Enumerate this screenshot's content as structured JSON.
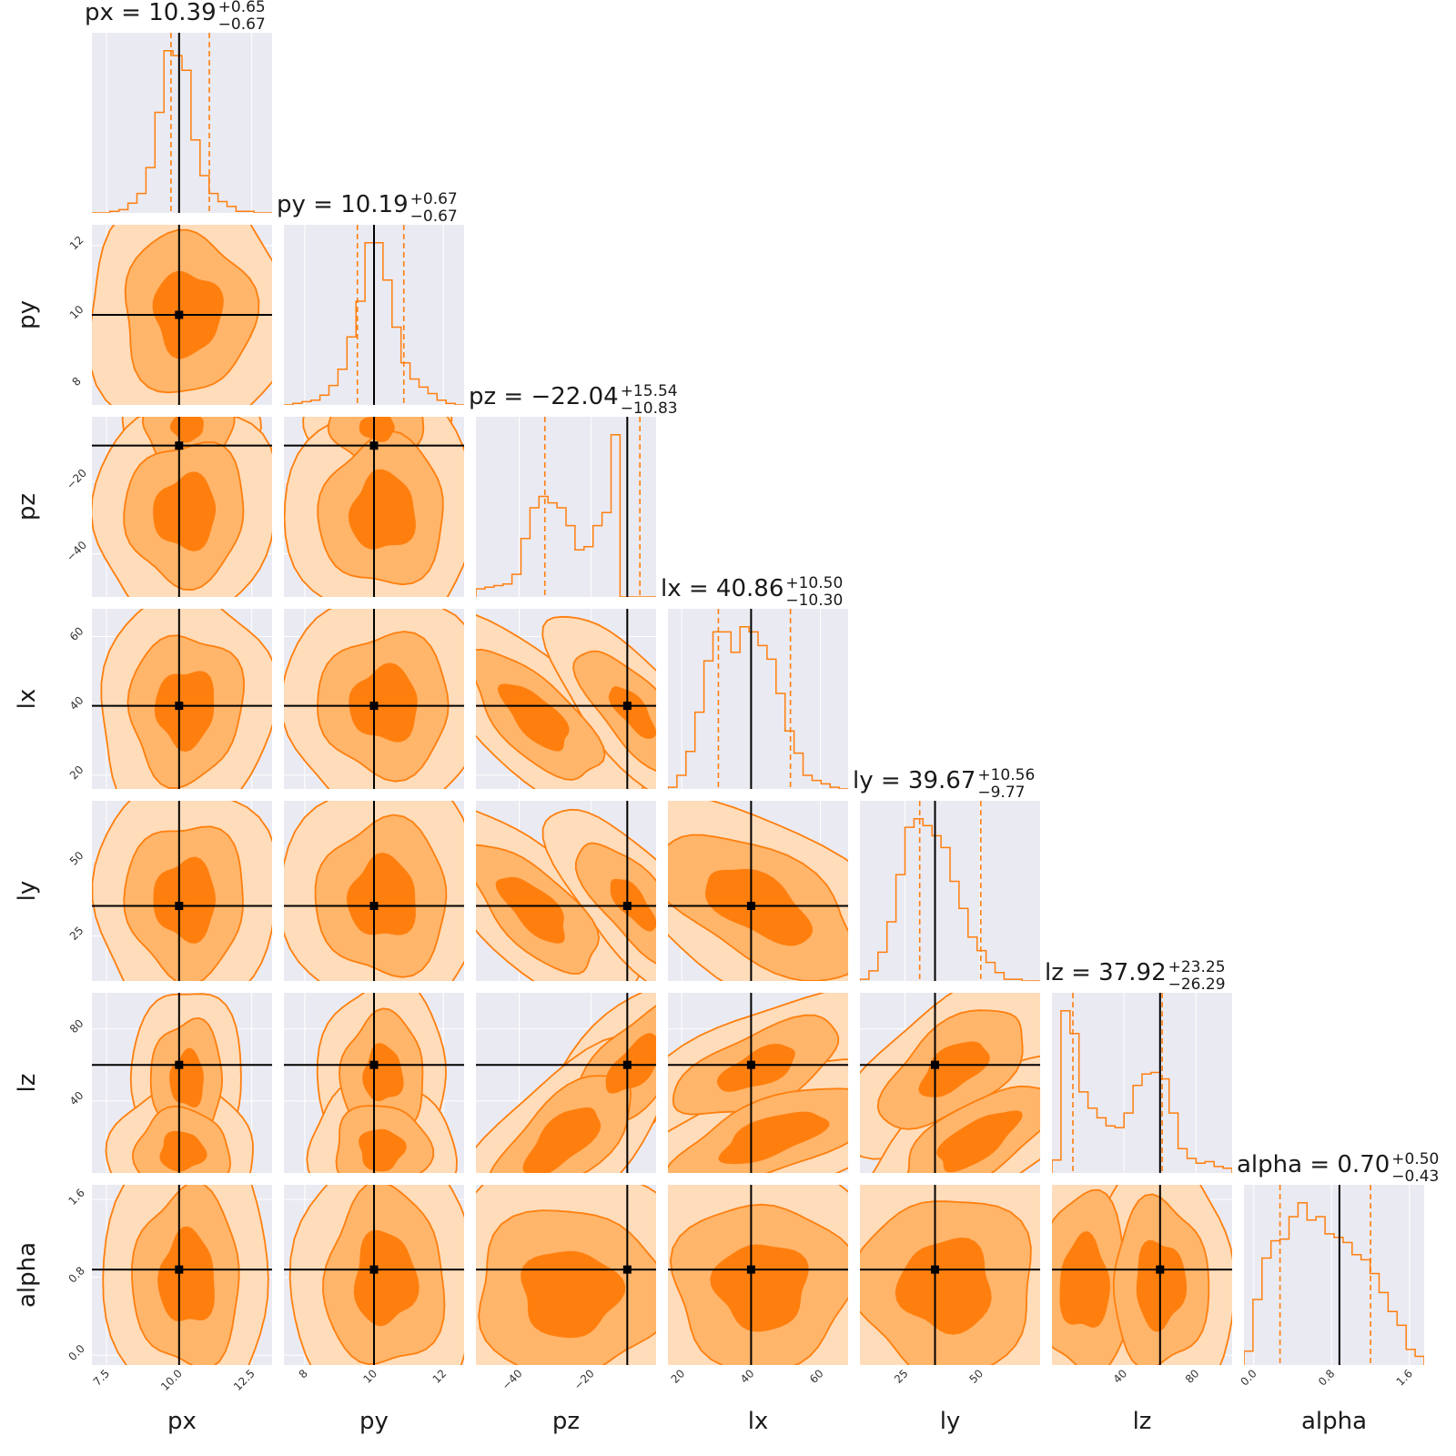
{
  "chart_data": {
    "type": "corner",
    "params": [
      "px",
      "py",
      "pz",
      "lx",
      "ly",
      "lz",
      "alpha"
    ],
    "truths": [
      10.0,
      10.0,
      -10.0,
      40.0,
      35.0,
      60.0,
      0.88
    ],
    "ranges": [
      [
        7.0,
        13.2
      ],
      [
        7.4,
        12.6
      ],
      [
        -52,
        -2
      ],
      [
        16,
        68
      ],
      [
        10,
        70
      ],
      [
        0,
        100
      ],
      [
        -0.1,
        1.75
      ]
    ],
    "ticks": [
      [
        7.5,
        10.0,
        12.5
      ],
      [
        8,
        10,
        12
      ],
      [
        -40,
        -20
      ],
      [
        20,
        40,
        60
      ],
      [
        25,
        50
      ],
      [
        40,
        80
      ],
      [
        0.0,
        0.8,
        1.6
      ]
    ],
    "tick_labels": [
      [
        "7.5",
        "10.0",
        "12.5"
      ],
      [
        "8",
        "10",
        "12"
      ],
      [
        "−40",
        "−20"
      ],
      [
        "20",
        "40",
        "60"
      ],
      [
        "25",
        "50"
      ],
      [
        "40",
        "80"
      ],
      [
        "0.0",
        "0.8",
        "1.6"
      ]
    ],
    "y_ticks": [
      null,
      [
        8,
        10,
        12
      ],
      [
        -40,
        -20
      ],
      [
        20,
        40,
        60
      ],
      [
        25,
        50
      ],
      [
        40,
        80
      ],
      [
        0.0,
        0.8,
        1.6
      ]
    ],
    "y_tick_labels": [
      null,
      [
        "8",
        "10",
        "12"
      ],
      [
        "−40",
        "−20"
      ],
      [
        "20",
        "40",
        "60"
      ],
      [
        "25",
        "50"
      ],
      [
        "40",
        "80"
      ],
      [
        "0.0",
        "0.8",
        "1.6"
      ]
    ],
    "titles": [
      {
        "main": "px = 10.39",
        "plus": "+0.65",
        "minus": "−0.67"
      },
      {
        "main": "py = 10.19",
        "plus": "+0.67",
        "minus": "−0.67"
      },
      {
        "main": "pz = −22.04",
        "plus": "+15.54",
        "minus": "−10.83"
      },
      {
        "main": "lx = 40.86",
        "plus": "+10.50",
        "minus": "−10.30"
      },
      {
        "main": "ly = 39.67",
        "plus": "+10.56",
        "minus": "−9.77"
      },
      {
        "main": "lz = 37.92",
        "plus": "+23.25",
        "minus": "−26.29"
      },
      {
        "main": "alpha = 0.70",
        "plus": "+0.50",
        "minus": "−0.43"
      }
    ],
    "quantiles": [
      [
        9.72,
        11.04
      ],
      [
        9.52,
        10.86
      ],
      [
        -32.87,
        -6.5
      ],
      [
        30.56,
        51.36
      ],
      [
        29.9,
        50.23
      ],
      [
        11.63,
        61.17
      ],
      [
        0.27,
        1.2
      ]
    ],
    "histograms": [
      {
        "edges_start": 7.0,
        "edges_end": 13.2,
        "counts": [
          0,
          0,
          1,
          2,
          6,
          12,
          28,
          62,
          100,
          97,
          88,
          45,
          23,
          12,
          7,
          4,
          1,
          1,
          0,
          0
        ]
      },
      {
        "edges_start": 7.4,
        "edges_end": 12.6,
        "counts": [
          0,
          1,
          2,
          3,
          6,
          12,
          22,
          42,
          64,
          100,
          100,
          77,
          48,
          26,
          16,
          11,
          7,
          3,
          1,
          0
        ]
      },
      {
        "edges_start": -52,
        "edges_end": -2,
        "counts": [
          5,
          6,
          7,
          8,
          14,
          36,
          55,
          62,
          58,
          55,
          44,
          29,
          31,
          44,
          52,
          100,
          0,
          0,
          0,
          0
        ]
      },
      {
        "edges_start": 16,
        "edges_end": 68,
        "counts": [
          1,
          8,
          22,
          45,
          75,
          92,
          92,
          80,
          95,
          92,
          84,
          76,
          56,
          34,
          21,
          8,
          5,
          3,
          1,
          0
        ]
      },
      {
        "edges_start": 10,
        "edges_end": 70,
        "counts": [
          1,
          6,
          17,
          35,
          63,
          91,
          96,
          92,
          86,
          79,
          59,
          43,
          26,
          18,
          11,
          5,
          1,
          1,
          0,
          0
        ]
      },
      {
        "edges_start": 0,
        "edges_end": 100,
        "counts": [
          8,
          100,
          86,
          50,
          40,
          34,
          29,
          28,
          37,
          54,
          61,
          62,
          58,
          37,
          15,
          9,
          6,
          7,
          4,
          3
        ]
      },
      {
        "edges_start": -0.1,
        "edges_end": 1.75,
        "counts": [
          8,
          38,
          62,
          72,
          73,
          86,
          94,
          84,
          86,
          76,
          74,
          71,
          64,
          61,
          53,
          42,
          31,
          23,
          9,
          5
        ]
      }
    ]
  }
}
